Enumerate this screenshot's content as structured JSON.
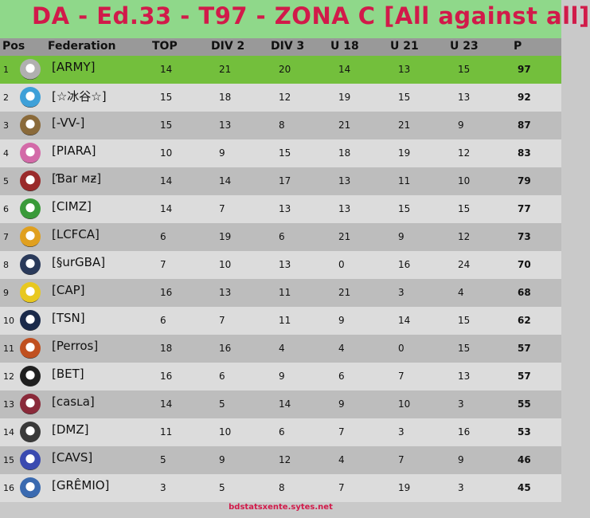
{
  "title": "DA - Ed.33 - T97 - ZONA C  [All against all]",
  "columns": [
    "Pos",
    "Federation",
    "TOP",
    "DIV 2",
    "DIV 3",
    "U 18",
    "U 21",
    "U 23",
    "P"
  ],
  "rows": [
    {
      "pos": "1",
      "name": "[ARMY]",
      "top": "14",
      "div2": "21",
      "div3": "20",
      "u18": "14",
      "u21": "13",
      "u23": "15",
      "p": "97",
      "crest_icon": "army-crest-icon",
      "crest_color": "#b0b0b0"
    },
    {
      "pos": "2",
      "name": "[☆冰谷☆]",
      "top": "15",
      "div2": "18",
      "div3": "12",
      "u18": "19",
      "u21": "15",
      "u23": "13",
      "p": "92",
      "crest_icon": "ice-valley-crest-icon",
      "crest_color": "#3ea0d8"
    },
    {
      "pos": "3",
      "name": "[-VV-]",
      "top": "15",
      "div2": "13",
      "div3": "8",
      "u18": "21",
      "u21": "21",
      "u23": "9",
      "p": "87",
      "crest_icon": "vv-crest-icon",
      "crest_color": "#8a6a3a"
    },
    {
      "pos": "4",
      "name": "[PIARA]",
      "top": "10",
      "div2": "9",
      "div3": "15",
      "u18": "18",
      "u21": "19",
      "u23": "12",
      "p": "83",
      "crest_icon": "piara-crest-icon",
      "crest_color": "#d36aa8"
    },
    {
      "pos": "5",
      "name": "[Ɓar мƶ]",
      "top": "14",
      "div2": "14",
      "div3": "17",
      "u18": "13",
      "u21": "11",
      "u23": "10",
      "p": "79",
      "crest_icon": "bar-mz-crest-icon",
      "crest_color": "#9a2a2a"
    },
    {
      "pos": "6",
      "name": "[CIMZ]",
      "top": "14",
      "div2": "7",
      "div3": "13",
      "u18": "13",
      "u21": "15",
      "u23": "15",
      "p": "77",
      "crest_icon": "cimz-crest-icon",
      "crest_color": "#3a9a3a"
    },
    {
      "pos": "7",
      "name": "[LCFCA]",
      "top": "6",
      "div2": "19",
      "div3": "6",
      "u18": "21",
      "u21": "9",
      "u23": "12",
      "p": "73",
      "crest_icon": "lcfca-crest-icon",
      "crest_color": "#e0a020"
    },
    {
      "pos": "8",
      "name": "[§urGBA]",
      "top": "7",
      "div2": "10",
      "div3": "13",
      "u18": "0",
      "u21": "16",
      "u23": "24",
      "p": "70",
      "crest_icon": "surgba-crest-icon",
      "crest_color": "#2a3a5a"
    },
    {
      "pos": "9",
      "name": "[CAP]",
      "top": "16",
      "div2": "13",
      "div3": "11",
      "u18": "21",
      "u21": "3",
      "u23": "4",
      "p": "68",
      "crest_icon": "cap-crest-icon",
      "crest_color": "#e8c820"
    },
    {
      "pos": "10",
      "name": "[TSN]",
      "top": "6",
      "div2": "7",
      "div3": "11",
      "u18": "9",
      "u21": "14",
      "u23": "15",
      "p": "62",
      "crest_icon": "tsn-crest-icon",
      "crest_color": "#1a2a4a"
    },
    {
      "pos": "11",
      "name": "[Perros]",
      "top": "18",
      "div2": "16",
      "div3": "4",
      "u18": "4",
      "u21": "0",
      "u23": "15",
      "p": "57",
      "crest_icon": "perros-crest-icon",
      "crest_color": "#c05020"
    },
    {
      "pos": "12",
      "name": "[BET]",
      "top": "16",
      "div2": "6",
      "div3": "9",
      "u18": "6",
      "u21": "7",
      "u23": "13",
      "p": "57",
      "crest_icon": "bet-crest-icon",
      "crest_color": "#202020"
    },
    {
      "pos": "13",
      "name": "[casʟa]",
      "top": "14",
      "div2": "5",
      "div3": "14",
      "u18": "9",
      "u21": "10",
      "u23": "3",
      "p": "55",
      "crest_icon": "casla-crest-icon",
      "crest_color": "#8a2a3a"
    },
    {
      "pos": "14",
      "name": "[DMZ]",
      "top": "11",
      "div2": "10",
      "div3": "6",
      "u18": "7",
      "u21": "3",
      "u23": "16",
      "p": "53",
      "crest_icon": "dmz-crest-icon",
      "crest_color": "#3a3a3a"
    },
    {
      "pos": "15",
      "name": "[CAVS]",
      "top": "5",
      "div2": "9",
      "div3": "12",
      "u18": "4",
      "u21": "7",
      "u23": "9",
      "p": "46",
      "crest_icon": "cavs-crest-icon",
      "crest_color": "#3a4ab0"
    },
    {
      "pos": "16",
      "name": "[GRÊMIO]",
      "top": "3",
      "div2": "5",
      "div3": "8",
      "u18": "7",
      "u21": "19",
      "u23": "3",
      "p": "45",
      "crest_icon": "gremio-crest-icon",
      "crest_color": "#3a6ab0"
    }
  ],
  "footer": "bdstatsxente.sytes.net"
}
